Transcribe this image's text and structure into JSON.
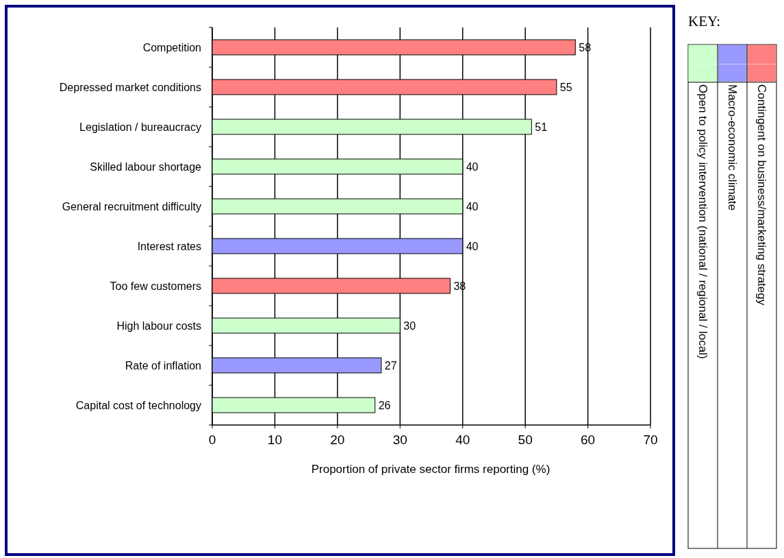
{
  "chart_data": {
    "type": "bar",
    "orientation": "horizontal",
    "xlabel": "Proportion of private sector firms reporting (%)",
    "legend_title": "KEY:",
    "legend": "right",
    "categories": [
      "Competition",
      "Depressed market conditions",
      "Legislation / bureaucracy",
      "Skilled labour shortage",
      "General recruitment difficulty",
      "Interest rates",
      "Too few customers",
      "High labour costs",
      "Rate of inflation",
      "Capital cost of technology"
    ],
    "series": [
      {
        "name": "Open to policy intervention (national / regional / local)",
        "color": "#ccffcc",
        "values": [
          null,
          null,
          51,
          40,
          40,
          null,
          null,
          30,
          null,
          26
        ]
      },
      {
        "name": "Macro-economic climate",
        "color": "#9999ff",
        "values": [
          null,
          null,
          null,
          null,
          null,
          40,
          null,
          null,
          27,
          null
        ]
      },
      {
        "name": "Contingent on business/marketing strategy",
        "color": "#ff8080",
        "values": [
          58,
          55,
          null,
          null,
          null,
          null,
          38,
          null,
          null,
          null
        ]
      }
    ],
    "xlim": [
      0,
      70
    ],
    "xticks": [
      0,
      10,
      20,
      30,
      40,
      50,
      60,
      70
    ],
    "grid": "x",
    "data_labels": true
  }
}
